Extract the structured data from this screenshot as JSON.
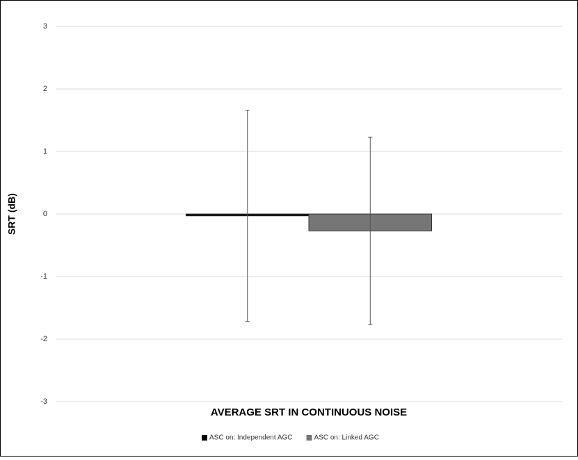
{
  "chart_data": {
    "type": "bar",
    "categories": [
      "AVERAGE SRT IN CONTINUOUS NOISE"
    ],
    "y_label": "SRT (dB)",
    "series": [
      {
        "name": "ASC on: Independent AGC",
        "color": "#000000",
        "values": [
          -0.03
        ],
        "errors": [
          1.69
        ]
      },
      {
        "name": "ASC on: Linked AGC",
        "color": "#767676",
        "values": [
          -0.27
        ],
        "errors": [
          1.5
        ]
      }
    ],
    "ylim": [
      -3,
      3
    ],
    "yticks": [
      -3,
      -2,
      -1,
      0,
      1,
      2,
      3
    ],
    "grid": true,
    "legend": "bottom"
  }
}
